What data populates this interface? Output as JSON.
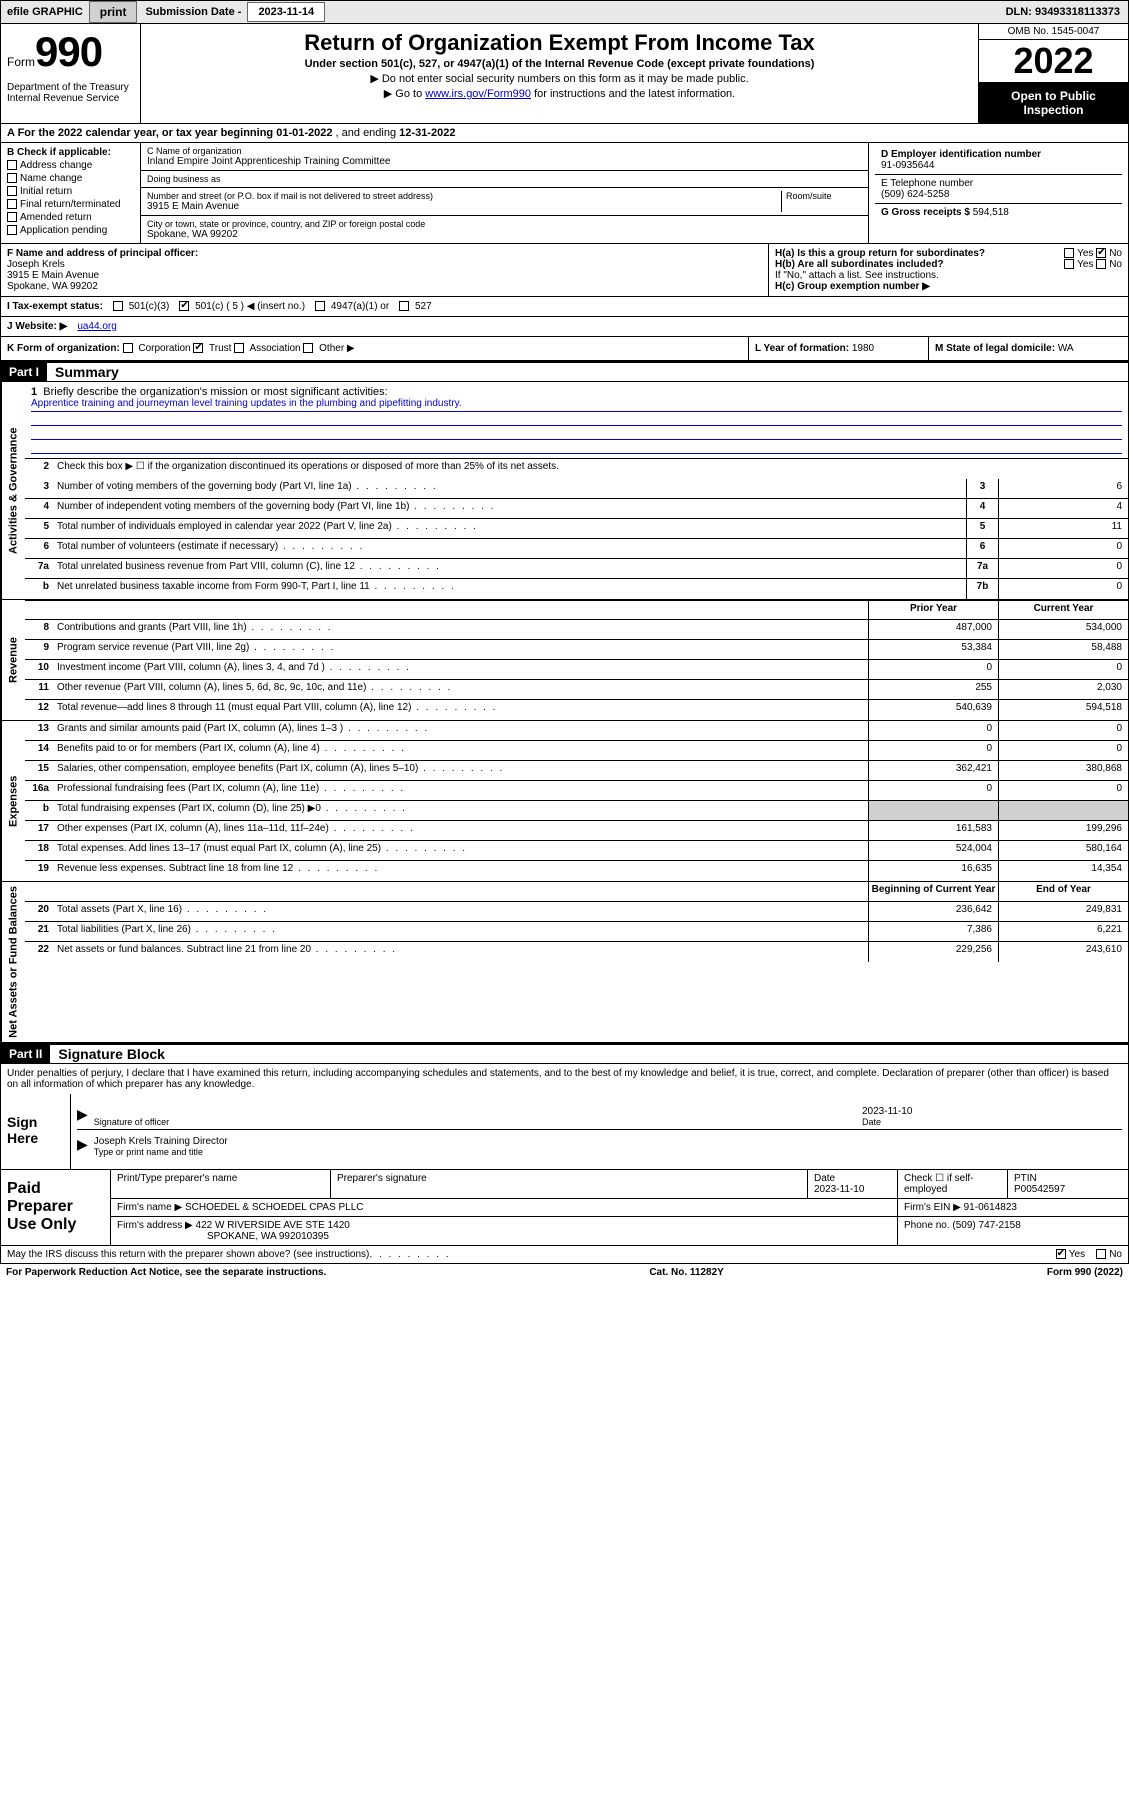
{
  "topbar": {
    "efile_label": "efile GRAPHIC",
    "print_btn": "print",
    "sub_date_label": "Submission Date -",
    "sub_date": "2023-11-14",
    "dln_label": "DLN:",
    "dln": "93493318113373"
  },
  "header": {
    "form_word": "Form",
    "form_num": "990",
    "dept": "Department of the Treasury Internal Revenue Service",
    "title": "Return of Organization Exempt From Income Tax",
    "subtitle": "Under section 501(c), 527, or 4947(a)(1) of the Internal Revenue Code (except private foundations)",
    "note1": "▶ Do not enter social security numbers on this form as it may be made public.",
    "note2_pre": "▶ Go to ",
    "note2_link": "www.irs.gov/Form990",
    "note2_post": " for instructions and the latest information.",
    "omb": "OMB No. 1545-0047",
    "year": "2022",
    "open": "Open to Public Inspection"
  },
  "lineA": {
    "text_pre": "A For the 2022 calendar year, or tax year beginning ",
    "begin": "01-01-2022",
    "mid": " , and ending ",
    "end": "12-31-2022"
  },
  "colB": {
    "header": "B Check if applicable:",
    "items": [
      "Address change",
      "Name change",
      "Initial return",
      "Final return/terminated",
      "Amended return",
      "Application pending"
    ]
  },
  "colC": {
    "name_lbl": "C Name of organization",
    "name": "Inland Empire Joint Apprenticeship Training Committee",
    "dba_lbl": "Doing business as",
    "dba": "",
    "addr_lbl": "Number and street (or P.O. box if mail is not delivered to street address)",
    "room_lbl": "Room/suite",
    "addr": "3915 E Main Avenue",
    "city_lbl": "City or town, state or province, country, and ZIP or foreign postal code",
    "city": "Spokane, WA  99202"
  },
  "colD": {
    "ein_lbl": "D Employer identification number",
    "ein": "91-0935644",
    "phone_lbl": "E Telephone number",
    "phone": "(509) 624-5258",
    "gross_lbl": "G Gross receipts $",
    "gross": "594,518"
  },
  "rowF": {
    "lbl": "F Name and address of principal officer:",
    "name": "Joseph Krels",
    "addr1": "3915 E Main Avenue",
    "addr2": "Spokane, WA  99202"
  },
  "rowH": {
    "ha": "H(a)  Is this a group return for subordinates?",
    "ha_yes": "Yes",
    "ha_no": "No",
    "hb": "H(b)  Are all subordinates included?",
    "hb_yes": "Yes",
    "hb_no": "No",
    "hb_note": "If \"No,\" attach a list. See instructions.",
    "hc": "H(c)  Group exemption number ▶"
  },
  "rowI": {
    "lbl": "I   Tax-exempt status:",
    "opts": [
      "501(c)(3)",
      "501(c) ( 5 ) ◀ (insert no.)",
      "4947(a)(1) or",
      "527"
    ]
  },
  "rowJ": {
    "lbl": "J   Website: ▶",
    "val": "ua44.org"
  },
  "rowK": {
    "lbl": "K Form of organization:",
    "opts": [
      "Corporation",
      "Trust",
      "Association",
      "Other ▶"
    ],
    "L_lbl": "L Year of formation:",
    "L_val": "1980",
    "M_lbl": "M State of legal domicile:",
    "M_val": "WA"
  },
  "part1": {
    "part": "Part I",
    "title": "Summary",
    "q1": "Briefly describe the organization's mission or most significant activities:",
    "mission": "Apprentice training and journeyman level training updates in the plumbing and pipefitting industry.",
    "q2": "Check this box ▶ ☐  if the organization discontinued its operations or disposed of more than 25% of its net assets.",
    "hdr_prior": "Prior Year",
    "hdr_current": "Current Year",
    "hdr_begin": "Beginning of Current Year",
    "hdr_end": "End of Year",
    "vlabels": {
      "gov": "Activities & Governance",
      "rev": "Revenue",
      "exp": "Expenses",
      "net": "Net Assets or Fund Balances"
    },
    "lines_single": [
      {
        "n": "3",
        "t": "Number of voting members of the governing body (Part VI, line 1a)",
        "box": "3",
        "v": "6"
      },
      {
        "n": "4",
        "t": "Number of independent voting members of the governing body (Part VI, line 1b)",
        "box": "4",
        "v": "4"
      },
      {
        "n": "5",
        "t": "Total number of individuals employed in calendar year 2022 (Part V, line 2a)",
        "box": "5",
        "v": "11"
      },
      {
        "n": "6",
        "t": "Total number of volunteers (estimate if necessary)",
        "box": "6",
        "v": "0"
      },
      {
        "n": "7a",
        "t": "Total unrelated business revenue from Part VIII, column (C), line 12",
        "box": "7a",
        "v": "0"
      },
      {
        "n": "b",
        "t": "Net unrelated business taxable income from Form 990-T, Part I, line 11",
        "box": "7b",
        "v": "0"
      }
    ],
    "lines_rev": [
      {
        "n": "8",
        "t": "Contributions and grants (Part VIII, line 1h)",
        "p": "487,000",
        "c": "534,000"
      },
      {
        "n": "9",
        "t": "Program service revenue (Part VIII, line 2g)",
        "p": "53,384",
        "c": "58,488"
      },
      {
        "n": "10",
        "t": "Investment income (Part VIII, column (A), lines 3, 4, and 7d )",
        "p": "0",
        "c": "0"
      },
      {
        "n": "11",
        "t": "Other revenue (Part VIII, column (A), lines 5, 6d, 8c, 9c, 10c, and 11e)",
        "p": "255",
        "c": "2,030"
      },
      {
        "n": "12",
        "t": "Total revenue—add lines 8 through 11 (must equal Part VIII, column (A), line 12)",
        "p": "540,639",
        "c": "594,518"
      }
    ],
    "lines_exp": [
      {
        "n": "13",
        "t": "Grants and similar amounts paid (Part IX, column (A), lines 1–3 )",
        "p": "0",
        "c": "0"
      },
      {
        "n": "14",
        "t": "Benefits paid to or for members (Part IX, column (A), line 4)",
        "p": "0",
        "c": "0"
      },
      {
        "n": "15",
        "t": "Salaries, other compensation, employee benefits (Part IX, column (A), lines 5–10)",
        "p": "362,421",
        "c": "380,868"
      },
      {
        "n": "16a",
        "t": "Professional fundraising fees (Part IX, column (A), line 11e)",
        "p": "0",
        "c": "0"
      },
      {
        "n": "b",
        "t": "Total fundraising expenses (Part IX, column (D), line 25) ▶0",
        "p": "",
        "c": "",
        "shaded": true
      },
      {
        "n": "17",
        "t": "Other expenses (Part IX, column (A), lines 11a–11d, 11f–24e)",
        "p": "161,583",
        "c": "199,296"
      },
      {
        "n": "18",
        "t": "Total expenses. Add lines 13–17 (must equal Part IX, column (A), line 25)",
        "p": "524,004",
        "c": "580,164"
      },
      {
        "n": "19",
        "t": "Revenue less expenses. Subtract line 18 from line 12",
        "p": "16,635",
        "c": "14,354"
      }
    ],
    "lines_net": [
      {
        "n": "20",
        "t": "Total assets (Part X, line 16)",
        "p": "236,642",
        "c": "249,831"
      },
      {
        "n": "21",
        "t": "Total liabilities (Part X, line 26)",
        "p": "7,386",
        "c": "6,221"
      },
      {
        "n": "22",
        "t": "Net assets or fund balances. Subtract line 21 from line 20",
        "p": "229,256",
        "c": "243,610"
      }
    ]
  },
  "part2": {
    "part": "Part II",
    "title": "Signature Block",
    "intro": "Under penalties of perjury, I declare that I have examined this return, including accompanying schedules and statements, and to the best of my knowledge and belief, it is true, correct, and complete. Declaration of preparer (other than officer) is based on all information of which preparer has any knowledge.",
    "sign_here": "Sign Here",
    "sig_officer_lbl": "Signature of officer",
    "sig_date": "2023-11-10",
    "date_lbl": "Date",
    "officer_name": "Joseph Krels  Training Director",
    "officer_name_lbl": "Type or print name and title",
    "paid_prep": "Paid Preparer Use Only",
    "prep_name_lbl": "Print/Type preparer's name",
    "prep_sig_lbl": "Preparer's signature",
    "prep_date_lbl": "Date",
    "prep_date": "2023-11-10",
    "prep_check_lbl": "Check ☐ if self-employed",
    "ptin_lbl": "PTIN",
    "ptin": "P00542597",
    "firm_name_lbl": "Firm's name    ▶",
    "firm_name": "SCHOEDEL & SCHOEDEL CPAS PLLC",
    "firm_ein_lbl": "Firm's EIN ▶",
    "firm_ein": "91-0614823",
    "firm_addr_lbl": "Firm's address ▶",
    "firm_addr1": "422 W RIVERSIDE AVE STE 1420",
    "firm_addr2": "SPOKANE, WA  992010395",
    "firm_phone_lbl": "Phone no.",
    "firm_phone": "(509) 747-2158",
    "discuss": "May the IRS discuss this return with the preparer shown above? (see instructions)",
    "yes": "Yes",
    "no": "No"
  },
  "footer": {
    "paperwork": "For Paperwork Reduction Act Notice, see the separate instructions.",
    "cat": "Cat. No. 11282Y",
    "form": "Form 990 (2022)"
  },
  "colors": {
    "link": "#0000cc",
    "black": "#000000",
    "shade": "#d0d0d0"
  }
}
